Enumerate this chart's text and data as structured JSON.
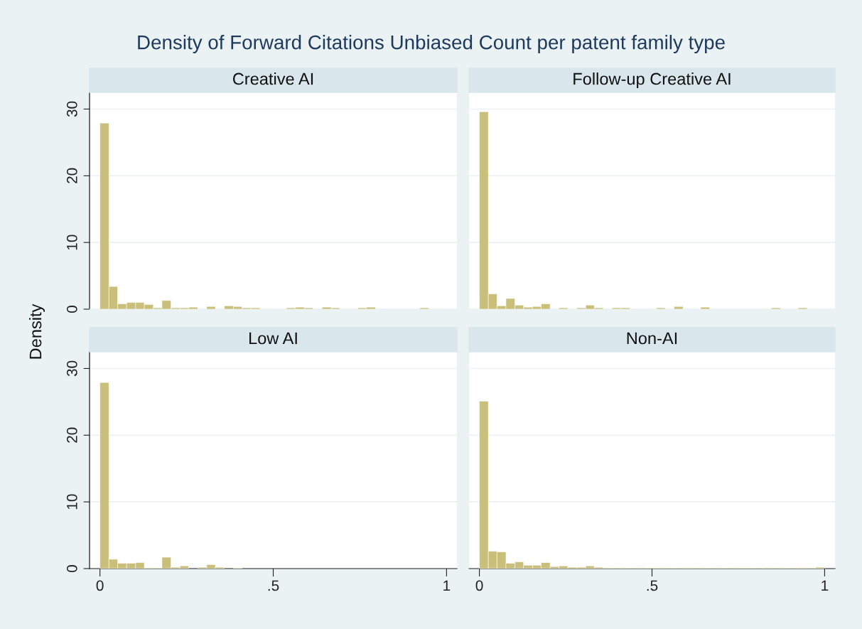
{
  "chart_data": [
    {
      "type": "histogram",
      "title": "Density of Forward Citations Unbiased Count per patent family type",
      "subtitle": "Creative AI",
      "ylabel": "Density",
      "color": "#c9bf7a",
      "bins": [
        0,
        0.026,
        0.051,
        0.077,
        0.103,
        0.128,
        0.154,
        0.179,
        0.205,
        0.231,
        0.256,
        0.282,
        0.308,
        0.333,
        0.359,
        0.385,
        0.41,
        0.436,
        0.462,
        0.487,
        0.513,
        0.538,
        0.564,
        0.59,
        0.615,
        0.641,
        0.667,
        0.692,
        0.718,
        0.744,
        0.769,
        0.795,
        0.821,
        0.846,
        0.872,
        0.897,
        0.923,
        0.949,
        0.974,
        1
      ],
      "values": [
        27.9,
        3.4,
        0.8,
        1,
        1,
        0.7,
        0.2,
        1.3,
        0.2,
        0.2,
        0.3,
        0,
        0.4,
        0,
        0.5,
        0.4,
        0.2,
        0.2,
        0,
        0,
        0,
        0.2,
        0.3,
        0.2,
        0,
        0.3,
        0.2,
        0,
        0,
        0.2,
        0.3,
        0,
        0,
        0,
        0,
        0,
        0.2,
        0,
        0
      ],
      "xlim": [
        -0.03,
        1.03
      ],
      "ylim": [
        0,
        32.5
      ],
      "yticks": [
        0,
        10,
        20,
        30
      ],
      "grid": "y",
      "tick_labels": "y"
    },
    {
      "type": "histogram",
      "subtitle": "Follow-up Creative AI",
      "color": "#c9bf7a",
      "bins": [
        0,
        0.026,
        0.051,
        0.077,
        0.103,
        0.128,
        0.154,
        0.179,
        0.205,
        0.231,
        0.256,
        0.282,
        0.308,
        0.333,
        0.359,
        0.385,
        0.41,
        0.436,
        0.462,
        0.487,
        0.513,
        0.538,
        0.564,
        0.59,
        0.615,
        0.641,
        0.667,
        0.692,
        0.718,
        0.744,
        0.769,
        0.795,
        0.821,
        0.846,
        0.872,
        0.897,
        0.923,
        0.949,
        0.974,
        1
      ],
      "values": [
        29.6,
        2.3,
        0.5,
        1.6,
        0.6,
        0.3,
        0.4,
        0.8,
        0,
        0.2,
        0,
        0.2,
        0.6,
        0.2,
        0,
        0.2,
        0.2,
        0,
        0,
        0,
        0.2,
        0,
        0.4,
        0,
        0,
        0.3,
        0,
        0,
        0,
        0,
        0,
        0,
        0,
        0.2,
        0,
        0,
        0.2,
        0,
        0
      ],
      "xlim": [
        -0.03,
        1.03
      ],
      "ylim": [
        0,
        32.5
      ],
      "yticks": [
        0,
        10,
        20,
        30
      ],
      "grid": "y",
      "tick_labels": false
    },
    {
      "type": "histogram",
      "subtitle": "Low AI",
      "color": "#c9bf7a",
      "bins": [
        0,
        0.026,
        0.051,
        0.077,
        0.103,
        0.128,
        0.154,
        0.179,
        0.205,
        0.231,
        0.256,
        0.282,
        0.308,
        0.333,
        0.359,
        0.385,
        0.41,
        0.436,
        0.462,
        0.487,
        0.513,
        0.538,
        0.564,
        0.59,
        0.615,
        0.641,
        0.667,
        0.692,
        0.718,
        0.744,
        0.769,
        0.795,
        0.821,
        0.846,
        0.872,
        0.897,
        0.923,
        0.949,
        0.974,
        1
      ],
      "values": [
        27.9,
        1.4,
        0.8,
        0.8,
        0.9,
        0.1,
        0.1,
        1.7,
        0.2,
        0.4,
        0,
        0.2,
        0.6,
        0.2,
        0,
        0.1,
        0,
        0,
        0,
        0,
        0,
        0,
        0,
        0,
        0,
        0,
        0,
        0,
        0,
        0,
        0,
        0,
        0,
        0,
        0,
        0,
        0,
        0,
        0
      ],
      "xlim": [
        -0.03,
        1.03
      ],
      "ylim": [
        0,
        32.5
      ],
      "xticks": [
        0,
        {
          "value": 0.5,
          "label": ".5"
        },
        1
      ],
      "yticks": [
        0,
        10,
        20,
        30
      ],
      "grid": "y"
    },
    {
      "type": "histogram",
      "subtitle": "Non-AI",
      "color": "#c9bf7a",
      "bins": [
        0,
        0.026,
        0.051,
        0.077,
        0.103,
        0.128,
        0.154,
        0.179,
        0.205,
        0.231,
        0.256,
        0.282,
        0.308,
        0.333,
        0.359,
        0.385,
        0.41,
        0.436,
        0.462,
        0.487,
        0.513,
        0.538,
        0.564,
        0.59,
        0.615,
        0.641,
        0.667,
        0.692,
        0.718,
        0.744,
        0.769,
        0.795,
        0.821,
        0.846,
        0.872,
        0.897,
        0.923,
        0.949,
        0.974,
        1
      ],
      "values": [
        25.1,
        2.6,
        2.5,
        0.8,
        1,
        0.5,
        0.5,
        0.9,
        0.3,
        0.4,
        0.2,
        0.2,
        0.4,
        0.2,
        0.1,
        0.1,
        0.1,
        0.1,
        0.1,
        0.1,
        0.1,
        0.1,
        0.1,
        0.1,
        0.1,
        0.1,
        0.1,
        0.1,
        0.1,
        0.1,
        0.1,
        0.1,
        0.1,
        0.1,
        0.1,
        0.1,
        0.1,
        0.1,
        0.2
      ],
      "xlim": [
        -0.03,
        1.03
      ],
      "ylim": [
        0,
        32.5
      ],
      "xticks": [
        0,
        {
          "value": 0.5,
          "label": ".5"
        },
        1
      ],
      "yticks": [
        0,
        10,
        20,
        30
      ],
      "grid": "y",
      "tick_labels": "x"
    }
  ]
}
